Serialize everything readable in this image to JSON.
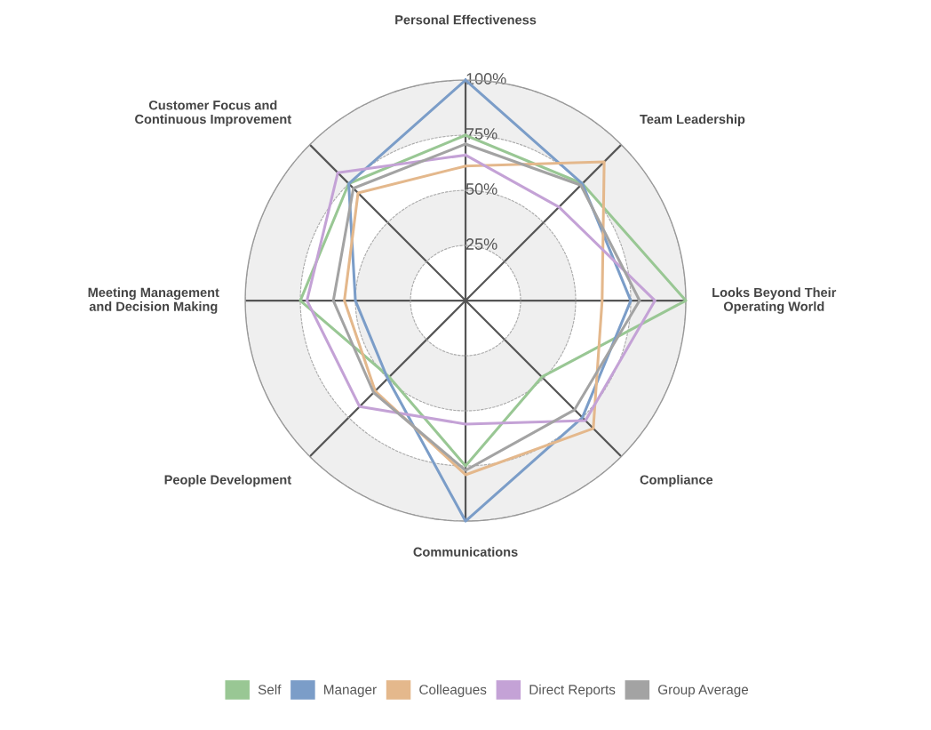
{
  "chart_data": {
    "type": "radar",
    "categories": [
      "Personal Effectiveness",
      "Team Leadership",
      "Looks Beyond Their\nOperating World",
      "Compliance",
      "Communications",
      "People Development",
      "Meeting Management\nand Decision Making",
      "Customer Focus and\nContinuous Improvement"
    ],
    "series": [
      {
        "name": "Self",
        "color": "#99c794",
        "values": [
          75,
          75,
          100,
          49,
          75,
          49,
          75,
          75
        ]
      },
      {
        "name": "Manager",
        "color": "#7b9dc8",
        "values": [
          100,
          75,
          75,
          75,
          100,
          50,
          50,
          75
        ]
      },
      {
        "name": "Colleagues",
        "color": "#e4b88c",
        "values": [
          61,
          89,
          62,
          82,
          79,
          58,
          55,
          69
        ]
      },
      {
        "name": "Direct Reports",
        "color": "#c4a2d6",
        "values": [
          66,
          60,
          86,
          77,
          56,
          68,
          72,
          82
        ]
      },
      {
        "name": "Group Average",
        "color": "#a3a3a3",
        "values": [
          71,
          74,
          79,
          70,
          77,
          59,
          60,
          72
        ]
      }
    ],
    "ylim": [
      0,
      100
    ],
    "yticks": [
      {
        "value": 25,
        "label": "25%"
      },
      {
        "value": 50,
        "label": "50%"
      },
      {
        "value": 75,
        "label": "75%"
      },
      {
        "value": 100,
        "label": "100%"
      }
    ],
    "grid": true,
    "legend": "bottom"
  }
}
